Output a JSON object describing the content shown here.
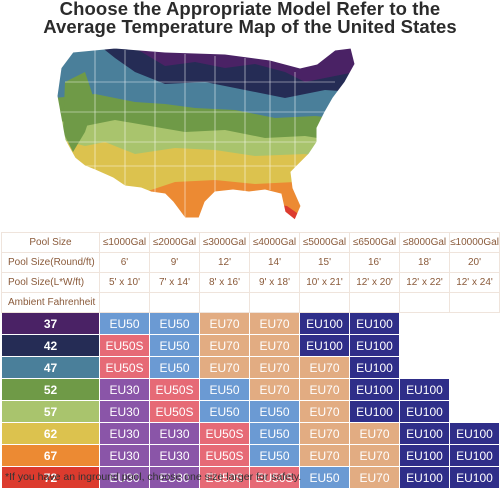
{
  "title": {
    "line1": "Choose the Appropriate Model Refer to the",
    "line2": "Average Temperature Map of the United States"
  },
  "colors": {
    "t37": "#4a2265",
    "t42": "#252c55",
    "t47": "#4a7f9a",
    "t52": "#6f9a47",
    "t57": "#a9c46d",
    "t62": "#dcc24e",
    "t67": "#ec8a33",
    "t72": "#dc3b2e",
    "EU50": "#6b9ad3",
    "EU70": "#e2ac82",
    "EU100": "#2f2e89",
    "EU50S": "#e66a76",
    "EU30": "#8a55a8"
  },
  "table": {
    "header": {
      "pool_size": "Pool Size",
      "gallons": [
        "≤1000Gal",
        "≤2000Gal",
        "≤3000Gal",
        "≤4000Gal",
        "≤5000Gal",
        "≤6500Gal",
        "≤8000Gal",
        "≤10000Gal"
      ],
      "round_label": "Pool Size(Round/ft)",
      "round": [
        "6'",
        "9'",
        "12'",
        "14'",
        "15'",
        "16'",
        "18'",
        "20'"
      ],
      "rect_label": "Pool Size(L*W/ft)",
      "rect": [
        "5' x 10'",
        "7' x 14'",
        "8' x 16'",
        "9' x 18'",
        "10' x 21'",
        "12' x 20'",
        "12' x 22'",
        "12' x 24'"
      ],
      "ambient_label": "Ambient Fahrenheit"
    },
    "rows": [
      {
        "temp": "37",
        "models": [
          "EU50",
          "EU50",
          "EU70",
          "EU70",
          "EU100",
          "EU100",
          "",
          ""
        ]
      },
      {
        "temp": "42",
        "models": [
          "EU50S",
          "EU50",
          "EU70",
          "EU70",
          "EU100",
          "EU100",
          "",
          ""
        ]
      },
      {
        "temp": "47",
        "models": [
          "EU50S",
          "EU50",
          "EU70",
          "EU70",
          "EU70",
          "EU100",
          "",
          ""
        ]
      },
      {
        "temp": "52",
        "models": [
          "EU30",
          "EU50S",
          "EU50",
          "EU70",
          "EU70",
          "EU100",
          "EU100",
          ""
        ]
      },
      {
        "temp": "57",
        "models": [
          "EU30",
          "EU50S",
          "EU50",
          "EU50",
          "EU70",
          "EU100",
          "EU100",
          ""
        ]
      },
      {
        "temp": "62",
        "models": [
          "EU30",
          "EU30",
          "EU50S",
          "EU50",
          "EU70",
          "EU70",
          "EU100",
          "EU100"
        ]
      },
      {
        "temp": "67",
        "models": [
          "EU30",
          "EU30",
          "EU50S",
          "EU50",
          "EU70",
          "EU70",
          "EU100",
          "EU100"
        ]
      },
      {
        "temp": "72",
        "models": [
          "EU30",
          "EU30",
          "EU50S",
          "EU50S",
          "EU50",
          "EU70",
          "EU100",
          "EU100"
        ]
      }
    ]
  },
  "footnote": "*If you have an inground pool, choose one size larger for safety."
}
